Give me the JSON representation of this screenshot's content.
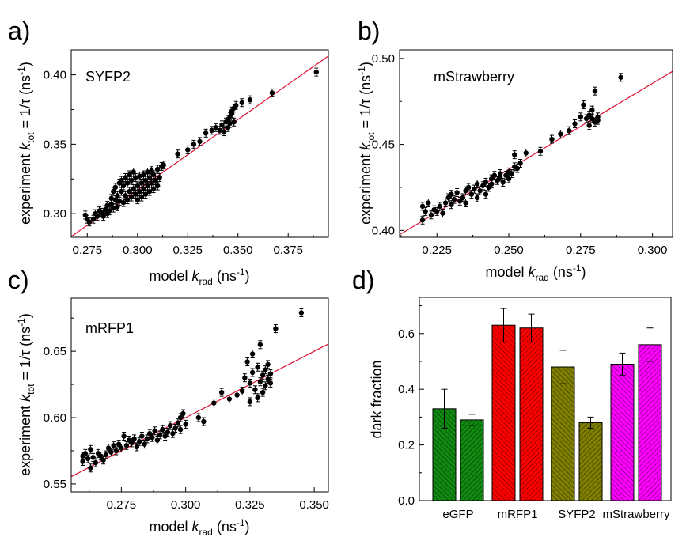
{
  "chart_data": [
    {
      "type": "scatter",
      "panel_label": "a)",
      "annotation": "SYFP2",
      "xlabel": "model k_rad (ns^-1)",
      "ylabel": "experiment k_tot = 1/τ (ns^-1)",
      "xlim": [
        0.267,
        0.395
      ],
      "ylim": [
        0.283,
        0.418
      ],
      "xticks": [
        0.275,
        0.3,
        0.325,
        0.35,
        0.375
      ],
      "xtick_labels": [
        "0.275",
        "0.300",
        "0.325",
        "0.350",
        "0.375"
      ],
      "yticks": [
        0.3,
        0.35,
        0.4
      ],
      "ytick_labels": [
        "0.30",
        "0.35",
        "0.40"
      ],
      "fit_line": [
        [
          0.267,
          0.2835
        ],
        [
          0.395,
          0.4135
        ]
      ],
      "points": [
        [
          0.274,
          0.299
        ],
        [
          0.275,
          0.296
        ],
        [
          0.276,
          0.294
        ],
        [
          0.278,
          0.296
        ],
        [
          0.279,
          0.3
        ],
        [
          0.28,
          0.298
        ],
        [
          0.281,
          0.302
        ],
        [
          0.282,
          0.301
        ],
        [
          0.283,
          0.298
        ],
        [
          0.284,
          0.303
        ],
        [
          0.285,
          0.3
        ],
        [
          0.285,
          0.306
        ],
        [
          0.286,
          0.302
        ],
        [
          0.287,
          0.307
        ],
        [
          0.287,
          0.311
        ],
        [
          0.288,
          0.304
        ],
        [
          0.288,
          0.316
        ],
        [
          0.289,
          0.31
        ],
        [
          0.289,
          0.319
        ],
        [
          0.29,
          0.305
        ],
        [
          0.29,
          0.313
        ],
        [
          0.291,
          0.322
        ],
        [
          0.291,
          0.309
        ],
        [
          0.292,
          0.316
        ],
        [
          0.292,
          0.324
        ],
        [
          0.293,
          0.308
        ],
        [
          0.293,
          0.32
        ],
        [
          0.294,
          0.313
        ],
        [
          0.294,
          0.326
        ],
        [
          0.295,
          0.31
        ],
        [
          0.295,
          0.322
        ],
        [
          0.296,
          0.316
        ],
        [
          0.296,
          0.328
        ],
        [
          0.297,
          0.312
        ],
        [
          0.297,
          0.324
        ],
        [
          0.298,
          0.318
        ],
        [
          0.298,
          0.33
        ],
        [
          0.299,
          0.314
        ],
        [
          0.299,
          0.326
        ],
        [
          0.3,
          0.32
        ],
        [
          0.3,
          0.31
        ],
        [
          0.301,
          0.327
        ],
        [
          0.301,
          0.316
        ],
        [
          0.302,
          0.322
        ],
        [
          0.302,
          0.312
        ],
        [
          0.303,
          0.328
        ],
        [
          0.303,
          0.318
        ],
        [
          0.304,
          0.324
        ],
        [
          0.304,
          0.314
        ],
        [
          0.305,
          0.33
        ],
        [
          0.305,
          0.32
        ],
        [
          0.306,
          0.316
        ],
        [
          0.306,
          0.326
        ],
        [
          0.307,
          0.322
        ],
        [
          0.307,
          0.331
        ],
        [
          0.308,
          0.318
        ],
        [
          0.308,
          0.328
        ],
        [
          0.309,
          0.324
        ],
        [
          0.31,
          0.332
        ],
        [
          0.31,
          0.32
        ],
        [
          0.311,
          0.326
        ],
        [
          0.312,
          0.334
        ],
        [
          0.313,
          0.335
        ],
        [
          0.32,
          0.343
        ],
        [
          0.325,
          0.346
        ],
        [
          0.328,
          0.35
        ],
        [
          0.331,
          0.352
        ],
        [
          0.334,
          0.358
        ],
        [
          0.337,
          0.36
        ],
        [
          0.339,
          0.362
        ],
        [
          0.341,
          0.36
        ],
        [
          0.342,
          0.364
        ],
        [
          0.343,
          0.359
        ],
        [
          0.344,
          0.366
        ],
        [
          0.345,
          0.362
        ],
        [
          0.345,
          0.368
        ],
        [
          0.346,
          0.37
        ],
        [
          0.346,
          0.365
        ],
        [
          0.347,
          0.372
        ],
        [
          0.347,
          0.374
        ],
        [
          0.348,
          0.376
        ],
        [
          0.348,
          0.366
        ],
        [
          0.349,
          0.378
        ],
        [
          0.352,
          0.38
        ],
        [
          0.356,
          0.382
        ],
        [
          0.367,
          0.387
        ],
        [
          0.389,
          0.402
        ]
      ]
    },
    {
      "type": "scatter",
      "panel_label": "b)",
      "annotation": "mStrawberry",
      "xlabel": "model k_rad (ns^-1)",
      "ylabel": "experiment k_tot = 1/τ (ns^-1)",
      "xlim": [
        0.212,
        0.307
      ],
      "ylim": [
        0.396,
        0.505
      ],
      "xticks": [
        0.225,
        0.25,
        0.275,
        0.3
      ],
      "xtick_labels": [
        "0.225",
        "0.250",
        "0.275",
        "0.300"
      ],
      "yticks": [
        0.4,
        0.45,
        0.5
      ],
      "ytick_labels": [
        "0.40",
        "0.45",
        "0.50"
      ],
      "fit_line": [
        [
          0.212,
          0.3975
        ],
        [
          0.307,
          0.4925
        ]
      ],
      "points": [
        [
          0.22,
          0.406
        ],
        [
          0.22,
          0.414
        ],
        [
          0.221,
          0.411
        ],
        [
          0.222,
          0.416
        ],
        [
          0.223,
          0.409
        ],
        [
          0.224,
          0.412
        ],
        [
          0.225,
          0.411
        ],
        [
          0.226,
          0.414
        ],
        [
          0.227,
          0.41
        ],
        [
          0.228,
          0.416
        ],
        [
          0.229,
          0.419
        ],
        [
          0.23,
          0.421
        ],
        [
          0.23,
          0.415
        ],
        [
          0.231,
          0.418
        ],
        [
          0.232,
          0.422
        ],
        [
          0.233,
          0.417
        ],
        [
          0.234,
          0.419
        ],
        [
          0.235,
          0.416
        ],
        [
          0.235,
          0.423
        ],
        [
          0.236,
          0.425
        ],
        [
          0.237,
          0.421
        ],
        [
          0.238,
          0.424
        ],
        [
          0.239,
          0.427
        ],
        [
          0.239,
          0.419
        ],
        [
          0.24,
          0.423
        ],
        [
          0.241,
          0.426
        ],
        [
          0.242,
          0.428
        ],
        [
          0.242,
          0.421
        ],
        [
          0.243,
          0.425
        ],
        [
          0.244,
          0.43
        ],
        [
          0.244,
          0.427
        ],
        [
          0.245,
          0.432
        ],
        [
          0.246,
          0.429
        ],
        [
          0.247,
          0.433
        ],
        [
          0.247,
          0.431
        ],
        [
          0.248,
          0.428
        ],
        [
          0.249,
          0.432
        ],
        [
          0.25,
          0.43
        ],
        [
          0.25,
          0.434
        ],
        [
          0.251,
          0.433
        ],
        [
          0.252,
          0.444
        ],
        [
          0.252,
          0.437
        ],
        [
          0.253,
          0.436
        ],
        [
          0.254,
          0.439
        ],
        [
          0.256,
          0.445
        ],
        [
          0.261,
          0.446
        ],
        [
          0.265,
          0.453
        ],
        [
          0.268,
          0.456
        ],
        [
          0.271,
          0.458
        ],
        [
          0.273,
          0.462
        ],
        [
          0.275,
          0.466
        ],
        [
          0.276,
          0.473
        ],
        [
          0.277,
          0.465
        ],
        [
          0.278,
          0.467
        ],
        [
          0.278,
          0.461
        ],
        [
          0.279,
          0.465
        ],
        [
          0.279,
          0.47
        ],
        [
          0.28,
          0.463
        ],
        [
          0.28,
          0.481
        ],
        [
          0.281,
          0.464
        ],
        [
          0.281,
          0.466
        ],
        [
          0.289,
          0.489
        ]
      ]
    },
    {
      "type": "scatter",
      "panel_label": "c)",
      "annotation": "mRFP1",
      "xlabel": "model k_rad (ns^-1)",
      "ylabel": "experiment k_tot = 1/τ (ns^-1)",
      "xlim": [
        0.2555,
        0.3555
      ],
      "ylim": [
        0.544,
        0.69
      ],
      "xticks": [
        0.275,
        0.3,
        0.325,
        0.35
      ],
      "xtick_labels": [
        "0.275",
        "0.300",
        "0.325",
        "0.350"
      ],
      "yticks": [
        0.55,
        0.6,
        0.65
      ],
      "ytick_labels": [
        "0.55",
        "0.60",
        "0.65"
      ],
      "fit_line": [
        [
          0.2555,
          0.5555
        ],
        [
          0.3555,
          0.6555
        ]
      ],
      "points": [
        [
          0.26,
          0.567
        ],
        [
          0.26,
          0.571
        ],
        [
          0.261,
          0.573
        ],
        [
          0.262,
          0.569
        ],
        [
          0.263,
          0.562
        ],
        [
          0.263,
          0.576
        ],
        [
          0.264,
          0.57
        ],
        [
          0.265,
          0.566
        ],
        [
          0.266,
          0.573
        ],
        [
          0.267,
          0.571
        ],
        [
          0.268,
          0.568
        ],
        [
          0.269,
          0.572
        ],
        [
          0.27,
          0.577
        ],
        [
          0.271,
          0.574
        ],
        [
          0.272,
          0.579
        ],
        [
          0.273,
          0.575
        ],
        [
          0.274,
          0.58
        ],
        [
          0.275,
          0.577
        ],
        [
          0.276,
          0.586
        ],
        [
          0.277,
          0.579
        ],
        [
          0.278,
          0.583
        ],
        [
          0.279,
          0.581
        ],
        [
          0.28,
          0.584
        ],
        [
          0.281,
          0.578
        ],
        [
          0.282,
          0.582
        ],
        [
          0.283,
          0.586
        ],
        [
          0.284,
          0.58
        ],
        [
          0.285,
          0.584
        ],
        [
          0.286,
          0.588
        ],
        [
          0.287,
          0.585
        ],
        [
          0.288,
          0.59
        ],
        [
          0.289,
          0.583
        ],
        [
          0.29,
          0.587
        ],
        [
          0.291,
          0.591
        ],
        [
          0.292,
          0.586
        ],
        [
          0.293,
          0.589
        ],
        [
          0.294,
          0.594
        ],
        [
          0.295,
          0.588
        ],
        [
          0.296,
          0.592
        ],
        [
          0.297,
          0.596
        ],
        [
          0.298,
          0.6
        ],
        [
          0.298,
          0.591
        ],
        [
          0.299,
          0.603
        ],
        [
          0.3,
          0.595
        ],
        [
          0.305,
          0.6
        ],
        [
          0.307,
          0.597
        ],
        [
          0.311,
          0.611
        ],
        [
          0.314,
          0.619
        ],
        [
          0.317,
          0.614
        ],
        [
          0.32,
          0.617
        ],
        [
          0.322,
          0.62
        ],
        [
          0.323,
          0.63
        ],
        [
          0.324,
          0.642
        ],
        [
          0.325,
          0.626
        ],
        [
          0.325,
          0.612
        ],
        [
          0.326,
          0.634
        ],
        [
          0.326,
          0.648
        ],
        [
          0.327,
          0.621
        ],
        [
          0.328,
          0.638
        ],
        [
          0.328,
          0.615
        ],
        [
          0.329,
          0.627
        ],
        [
          0.329,
          0.655
        ],
        [
          0.33,
          0.632
        ],
        [
          0.33,
          0.619
        ],
        [
          0.331,
          0.636
        ],
        [
          0.331,
          0.624
        ],
        [
          0.332,
          0.64
        ],
        [
          0.332,
          0.629
        ],
        [
          0.333,
          0.633
        ],
        [
          0.333,
          0.626
        ],
        [
          0.335,
          0.667
        ],
        [
          0.345,
          0.679
        ]
      ]
    },
    {
      "type": "bar",
      "panel_label": "d)",
      "ylabel": "dark fraction",
      "ylim": [
        0,
        0.73
      ],
      "yticks": [
        0.0,
        0.2,
        0.4,
        0.6
      ],
      "ytick_labels": [
        "0.0",
        "0.2",
        "0.4",
        "0.6"
      ],
      "categories": [
        "eGFP",
        "mRFP1",
        "SYFP2",
        "mStrawberry"
      ],
      "bars": [
        {
          "category": "eGFP",
          "value": 0.33,
          "error": 0.07,
          "color": "#108a10",
          "hatch": "back"
        },
        {
          "category": "eGFP",
          "value": 0.29,
          "error": 0.02,
          "color": "#108a10",
          "hatch": "forward"
        },
        {
          "category": "mRFP1",
          "value": 0.63,
          "error": 0.06,
          "color": "#ff0000",
          "hatch": "back"
        },
        {
          "category": "mRFP1",
          "value": 0.62,
          "error": 0.05,
          "color": "#ff0000",
          "hatch": "forward"
        },
        {
          "category": "SYFP2",
          "value": 0.48,
          "error": 0.06,
          "color": "#808000",
          "hatch": "back"
        },
        {
          "category": "SYFP2",
          "value": 0.28,
          "error": 0.02,
          "color": "#808000",
          "hatch": "forward"
        },
        {
          "category": "mStrawberry",
          "value": 0.49,
          "error": 0.04,
          "color": "#ff00ff",
          "hatch": "back"
        },
        {
          "category": "mStrawberry",
          "value": 0.56,
          "error": 0.06,
          "color": "#ff00ff",
          "hatch": "forward"
        }
      ]
    }
  ],
  "colors": {
    "fit_line": "#dd1133",
    "marker": "#000000",
    "axis": "#000000"
  }
}
